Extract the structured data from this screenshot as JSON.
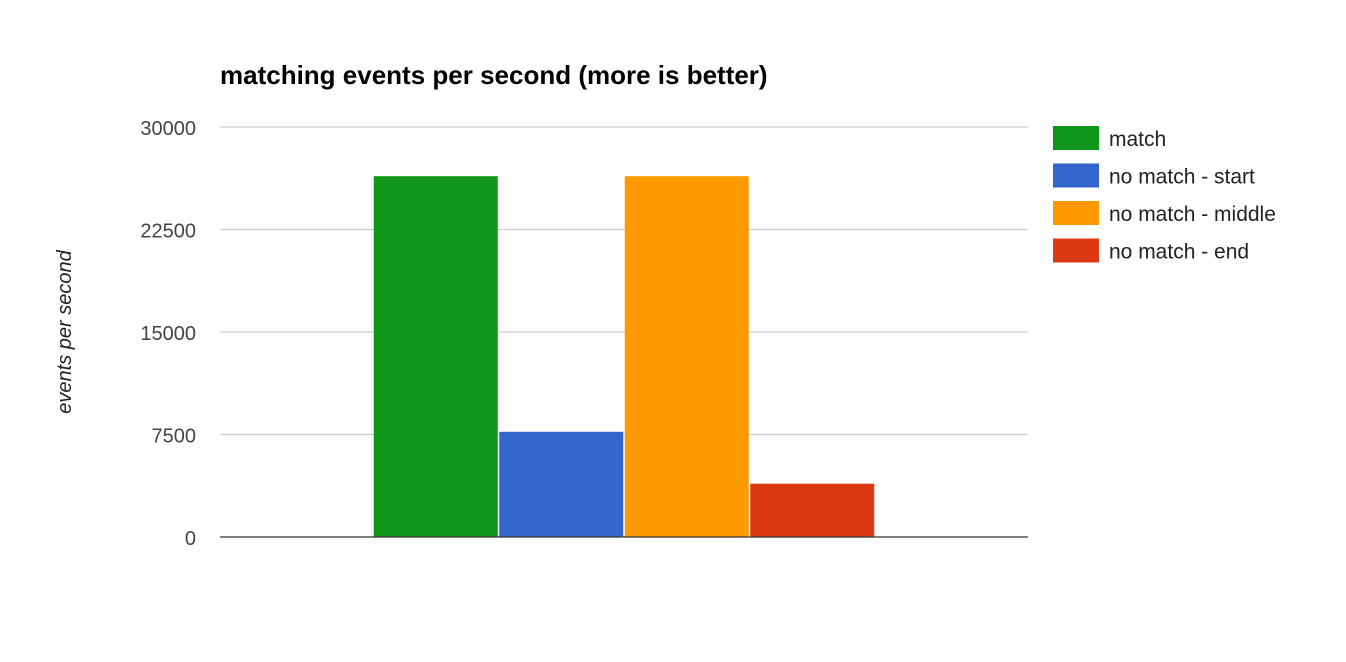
{
  "chart_data": {
    "type": "bar",
    "title": "matching events per second (more is better)",
    "xlabel": "",
    "ylabel": "events per second",
    "ylim": [
      0,
      30000
    ],
    "yticks": [
      0,
      7500,
      15000,
      22500,
      30000
    ],
    "categories": [
      ""
    ],
    "grid": true,
    "legend_position": "right",
    "series": [
      {
        "name": "match",
        "values": [
          26400
        ],
        "color": "#109618"
      },
      {
        "name": "no match - start",
        "values": [
          7700
        ],
        "color": "#3366cc"
      },
      {
        "name": "no match - middle",
        "values": [
          26400
        ],
        "color": "#ff9900"
      },
      {
        "name": "no match - end",
        "values": [
          3900
        ],
        "color": "#dc3912"
      }
    ]
  }
}
